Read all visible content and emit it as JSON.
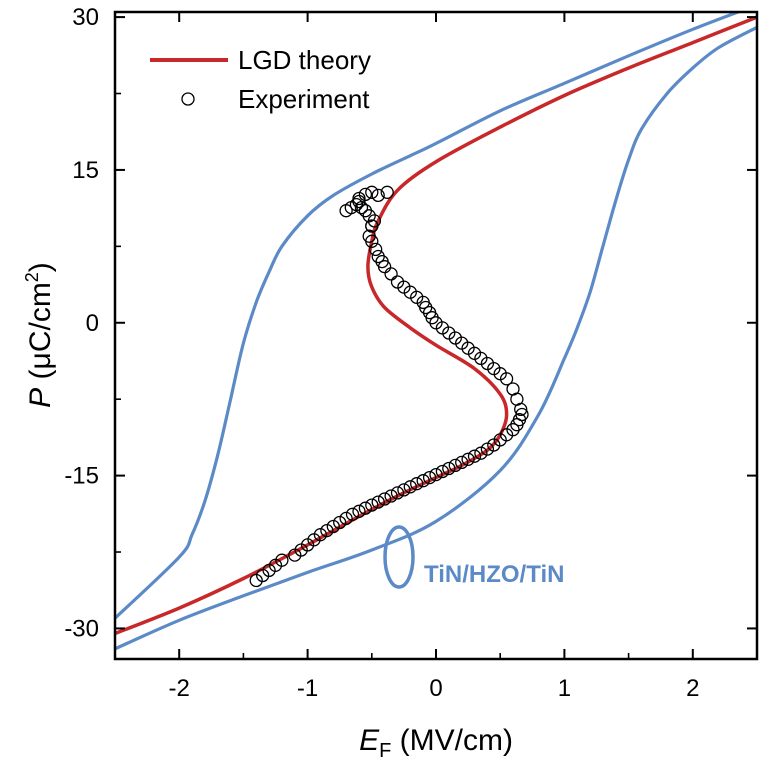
{
  "chart_data": {
    "type": "line",
    "xlabel": {
      "symbol": "E",
      "subscript": "F",
      "unit": " (MV/cm)"
    },
    "ylabel": {
      "symbol": "P",
      "unit_pre": " (μC/cm",
      "sup": "2",
      "unit_post": ")"
    },
    "xlim": [
      -2.5,
      2.5
    ],
    "ylim": [
      -33,
      30.5
    ],
    "xticks": [
      -2,
      -1,
      0,
      1,
      2
    ],
    "xtick_labels": [
      "-2",
      "-1",
      "0",
      "1",
      "2"
    ],
    "yticks": [
      -30,
      -15,
      0,
      15,
      30
    ],
    "ytick_labels": [
      "-30",
      "-15",
      "0",
      "15",
      "30"
    ],
    "grid": false,
    "legend_position": "top-left",
    "colors": {
      "theory": "#c8282a",
      "experiment": "#000000",
      "hysteresis": "#5b8ac7"
    },
    "annotation": {
      "text": "TiN/HZO/TiN"
    },
    "series": [
      {
        "name": "LGD theory",
        "style": "line",
        "color": "#c8282a",
        "x": [
          -2.5,
          -2.0,
          -1.5,
          -1.0,
          -0.6,
          -0.3,
          0.0,
          0.2,
          0.4,
          0.5,
          0.55,
          0.5,
          0.3,
          0.0,
          -0.2,
          -0.4,
          -0.5,
          -0.53,
          -0.5,
          -0.45,
          -0.3,
          0.0,
          0.5,
          1.0,
          1.5,
          2.0,
          2.5
        ],
        "y": [
          -30.5,
          -28.0,
          -25.1,
          -21.8,
          -19.0,
          -17.0,
          -15.2,
          -14.0,
          -12.5,
          -11.0,
          -9.0,
          -7.0,
          -4.5,
          -2.2,
          -0.5,
          1.5,
          3.5,
          5.5,
          8.0,
          10.0,
          13.0,
          15.8,
          19.2,
          22.3,
          25.0,
          27.5,
          30.0
        ]
      },
      {
        "name": "Experiment",
        "style": "markers",
        "marker": "open-circle",
        "color": "#000000",
        "x": [
          -1.4,
          -1.35,
          -1.3,
          -1.25,
          -1.2,
          -1.1,
          -1.05,
          -1.0,
          -0.95,
          -0.9,
          -0.85,
          -0.8,
          -0.75,
          -0.7,
          -0.65,
          -0.6,
          -0.55,
          -0.5,
          -0.45,
          -0.4,
          -0.35,
          -0.3,
          -0.25,
          -0.2,
          -0.15,
          -0.1,
          -0.05,
          0.0,
          0.05,
          0.1,
          0.15,
          0.2,
          0.25,
          0.3,
          0.35,
          0.4,
          0.45,
          0.5,
          0.55,
          0.6,
          0.63,
          0.65,
          0.67,
          0.66,
          0.63,
          0.6,
          0.55,
          0.5,
          0.45,
          0.4,
          0.35,
          0.3,
          0.25,
          0.2,
          0.15,
          0.1,
          0.05,
          0.0,
          -0.03,
          -0.05,
          -0.08,
          -0.1,
          -0.15,
          -0.2,
          -0.25,
          -0.3,
          -0.35,
          -0.4,
          -0.42,
          -0.45,
          -0.47,
          -0.5,
          -0.52,
          -0.5,
          -0.48,
          -0.52,
          -0.55,
          -0.58,
          -0.62,
          -0.66,
          -0.7,
          -0.6,
          -0.55,
          -0.5,
          -0.45,
          -0.6,
          -0.5,
          -0.38
        ],
        "y": [
          -25.3,
          -24.8,
          -24.3,
          -23.8,
          -23.3,
          -22.8,
          -22.3,
          -21.8,
          -21.3,
          -20.8,
          -20.4,
          -20.0,
          -19.6,
          -19.2,
          -18.8,
          -18.5,
          -18.2,
          -17.9,
          -17.6,
          -17.3,
          -17.0,
          -16.7,
          -16.4,
          -16.1,
          -15.8,
          -15.5,
          -15.2,
          -14.9,
          -14.6,
          -14.3,
          -14.0,
          -13.7,
          -13.4,
          -13.1,
          -12.8,
          -12.4,
          -12.0,
          -11.5,
          -11.0,
          -10.5,
          -10.0,
          -9.5,
          -9.0,
          -8.5,
          -7.5,
          -6.5,
          -5.5,
          -5.0,
          -4.5,
          -4.0,
          -3.5,
          -3.0,
          -2.5,
          -2.0,
          -1.5,
          -1.0,
          -0.5,
          0.0,
          0.5,
          1.0,
          1.5,
          2.0,
          2.5,
          3.0,
          3.5,
          4.0,
          4.8,
          5.5,
          6.0,
          6.5,
          7.2,
          8.0,
          8.5,
          9.5,
          10.0,
          10.5,
          11.0,
          11.3,
          11.6,
          11.3,
          11.0,
          12.2,
          12.6,
          12.8,
          12.5,
          11.9,
          9.5,
          12.8
        ]
      },
      {
        "name": "",
        "style": "line",
        "color": "#5b8ac7",
        "x": [
          -2.5,
          -2.0,
          -1.9,
          -1.8,
          -1.7,
          -1.6,
          -1.5,
          -1.4,
          -1.3,
          -1.2,
          -1.0,
          -0.8,
          -0.5,
          -0.2,
          0.0,
          0.5,
          1.0,
          1.5,
          2.0,
          2.5
        ],
        "y": [
          -29.0,
          -23.0,
          -20.8,
          -17.5,
          -13.0,
          -7.5,
          -2.0,
          2.0,
          5.0,
          7.5,
          10.5,
          12.5,
          14.6,
          16.4,
          17.6,
          20.8,
          23.5,
          26.2,
          28.8,
          31.2
        ]
      },
      {
        "name": "",
        "style": "line",
        "color": "#5b8ac7",
        "x": [
          -2.5,
          -2.0,
          -1.5,
          -1.0,
          -0.5,
          0.0,
          0.5,
          0.8,
          1.0,
          1.1,
          1.2,
          1.3,
          1.4,
          1.5,
          1.6,
          1.8,
          2.0,
          2.2,
          2.5
        ],
        "y": [
          -32.0,
          -29.2,
          -26.8,
          -24.5,
          -22.3,
          -19.5,
          -14.5,
          -9.0,
          -3.5,
          -0.5,
          3.0,
          7.5,
          12.0,
          16.0,
          19.0,
          22.5,
          25.0,
          27.0,
          29.0
        ]
      }
    ]
  }
}
